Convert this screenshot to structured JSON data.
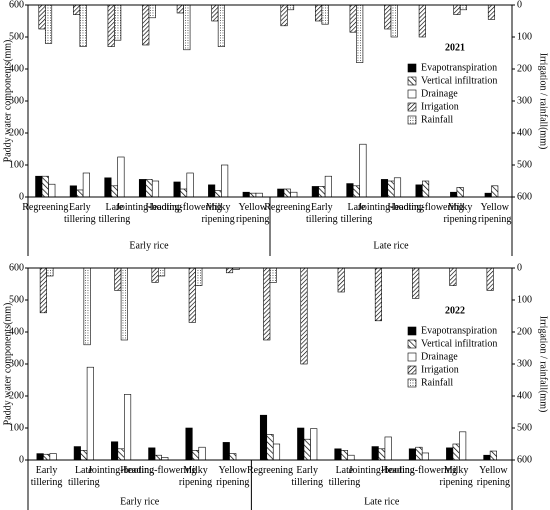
{
  "chart_data": [
    {
      "type": "bar",
      "title": "2021",
      "ylabel": "Paddy water components(mm)",
      "y2label": "Irrigation / rainfall(mm)",
      "groups": [
        {
          "name": "Early rice",
          "categories": [
            "Regreening",
            "Early tillering",
            "Late tillering",
            "Jointing-booting",
            "Heading-flowering",
            "Milky ripening",
            "Yellow ripening"
          ]
        },
        {
          "name": "Late rice",
          "categories": [
            "Regreening",
            "Early tillering",
            "Late tillering",
            "Jointing-booting",
            "Heading-flowering",
            "Milky ripening",
            "Yellow ripening"
          ]
        }
      ],
      "ylim": [
        0,
        600
      ],
      "yticks": [
        0,
        100,
        200,
        300,
        400,
        500,
        600
      ],
      "y2lim": [
        600,
        0
      ],
      "y2ticks": [
        0,
        100,
        200,
        300,
        400,
        500,
        600
      ],
      "series": [
        {
          "name": "Evapotranspiration",
          "color": "#000000",
          "pattern": "solid",
          "values": [
            65,
            35,
            60,
            55,
            47,
            38,
            15,
            25,
            33,
            42,
            55,
            38,
            15,
            12
          ]
        },
        {
          "name": "Vertical infiltration",
          "color": "#000000",
          "pattern": "hatch",
          "values": [
            65,
            22,
            35,
            55,
            25,
            20,
            12,
            25,
            33,
            35,
            50,
            50,
            30,
            35
          ]
        },
        {
          "name": "Drainage",
          "color": "#000000",
          "pattern": "none",
          "values": [
            40,
            75,
            125,
            50,
            75,
            100,
            12,
            15,
            65,
            165,
            60,
            0,
            0,
            0
          ]
        },
        {
          "name": "Irrigation",
          "color": "#000000",
          "pattern": "dense-hatch",
          "axis": "y2",
          "values": [
            75,
            30,
            130,
            125,
            25,
            50,
            0,
            65,
            50,
            85,
            75,
            100,
            30,
            45
          ]
        },
        {
          "name": "Rainfall",
          "color": "#000000",
          "pattern": "dots",
          "axis": "y2",
          "values": [
            120,
            130,
            110,
            40,
            140,
            130,
            0,
            15,
            60,
            180,
            100,
            0,
            15,
            0
          ]
        }
      ]
    },
    {
      "type": "bar",
      "title": "2022",
      "ylabel": "Paddy water components(mm)",
      "y2label": "Irrigation / rainfall(mm)",
      "groups": [
        {
          "name": "Early rice",
          "categories": [
            "Early tillering",
            "Late tillering",
            "Jointing-booting",
            "Heading-flowering",
            "Milky ripening",
            "Yellow ripening"
          ]
        },
        {
          "name": "Late rice",
          "categories": [
            "Regreening",
            "Early tillering",
            "Late tillering",
            "Jointing-booting",
            "Heading-flowering",
            "Milky ripening",
            "Yellow ripening"
          ]
        }
      ],
      "ylim": [
        0,
        600
      ],
      "yticks": [
        0,
        100,
        200,
        300,
        400,
        500,
        600
      ],
      "y2lim": [
        600,
        0
      ],
      "y2ticks": [
        0,
        100,
        200,
        300,
        400,
        500,
        600
      ],
      "series": [
        {
          "name": "Evapotranspiration",
          "color": "#000000",
          "pattern": "solid",
          "values": [
            20,
            42,
            57,
            38,
            100,
            55,
            140,
            100,
            35,
            42,
            35,
            38,
            15
          ]
        },
        {
          "name": "Vertical infiltration",
          "color": "#000000",
          "pattern": "hatch",
          "values": [
            18,
            30,
            35,
            15,
            30,
            20,
            80,
            65,
            30,
            35,
            40,
            50,
            28
          ]
        },
        {
          "name": "Drainage",
          "color": "#000000",
          "pattern": "none",
          "values": [
            20,
            290,
            205,
            8,
            40,
            0,
            50,
            98,
            15,
            72,
            22,
            88,
            0
          ]
        },
        {
          "name": "Irrigation",
          "color": "#000000",
          "pattern": "dense-hatch",
          "axis": "y2",
          "values": [
            140,
            0,
            70,
            45,
            170,
            15,
            225,
            300,
            75,
            165,
            95,
            55,
            70
          ]
        },
        {
          "name": "Rainfall",
          "color": "#000000",
          "pattern": "dots",
          "axis": "y2",
          "values": [
            25,
            240,
            225,
            25,
            55,
            5,
            45,
            0,
            0,
            0,
            0,
            0,
            0
          ]
        }
      ]
    }
  ]
}
